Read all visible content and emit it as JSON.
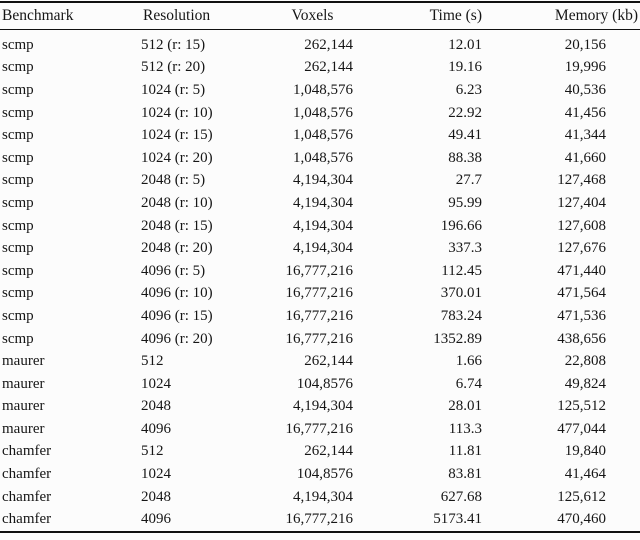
{
  "table": {
    "columns": [
      {
        "label": "Benchmark"
      },
      {
        "label": "Resolution"
      },
      {
        "label": "Voxels"
      },
      {
        "label": "Time (s)"
      },
      {
        "label": "Memory (kb)"
      }
    ],
    "rows": [
      [
        "scmp",
        "512 (r: 15)",
        "262,144",
        "12.01",
        "20,156"
      ],
      [
        "scmp",
        "512 (r: 20)",
        "262,144",
        "19.16",
        "19,996"
      ],
      [
        "scmp",
        "1024 (r: 5)",
        "1,048,576",
        "6.23",
        "40,536"
      ],
      [
        "scmp",
        "1024 (r: 10)",
        "1,048,576",
        "22.92",
        "41,456"
      ],
      [
        "scmp",
        "1024 (r: 15)",
        "1,048,576",
        "49.41",
        "41,344"
      ],
      [
        "scmp",
        "1024 (r: 20)",
        "1,048,576",
        "88.38",
        "41,660"
      ],
      [
        "scmp",
        "2048 (r: 5)",
        "4,194,304",
        "27.7",
        "127,468"
      ],
      [
        "scmp",
        "2048 (r: 10)",
        "4,194,304",
        "95.99",
        "127,404"
      ],
      [
        "scmp",
        "2048 (r: 15)",
        "4,194,304",
        "196.66",
        "127,608"
      ],
      [
        "scmp",
        "2048 (r: 20)",
        "4,194,304",
        "337.3",
        "127,676"
      ],
      [
        "scmp",
        "4096 (r: 5)",
        "16,777,216",
        "112.45",
        "471,440"
      ],
      [
        "scmp",
        "4096 (r: 10)",
        "16,777,216",
        "370.01",
        "471,564"
      ],
      [
        "scmp",
        "4096 (r: 15)",
        "16,777,216",
        "783.24",
        "471,536"
      ],
      [
        "scmp",
        "4096 (r: 20)",
        "16,777,216",
        "1352.89",
        "438,656"
      ],
      [
        "maurer",
        "512",
        "262,144",
        "1.66",
        "22,808"
      ],
      [
        "maurer",
        "1024",
        "104,8576",
        "6.74",
        "49,824"
      ],
      [
        "maurer",
        "2048",
        "4,194,304",
        "28.01",
        "125,512"
      ],
      [
        "maurer",
        "4096",
        "16,777,216",
        "113.3",
        "477,044"
      ],
      [
        "chamfer",
        "512",
        "262,144",
        "11.81",
        "19,840"
      ],
      [
        "chamfer",
        "1024",
        "104,8576",
        "83.81",
        "41,464"
      ],
      [
        "chamfer",
        "2048",
        "4,194,304",
        "627.68",
        "125,612"
      ],
      [
        "chamfer",
        "4096",
        "16,777,216",
        "5173.41",
        "470,460"
      ]
    ]
  },
  "colors": {
    "text": "#161616",
    "rule": "#111111",
    "background": "#fcfcfc"
  }
}
